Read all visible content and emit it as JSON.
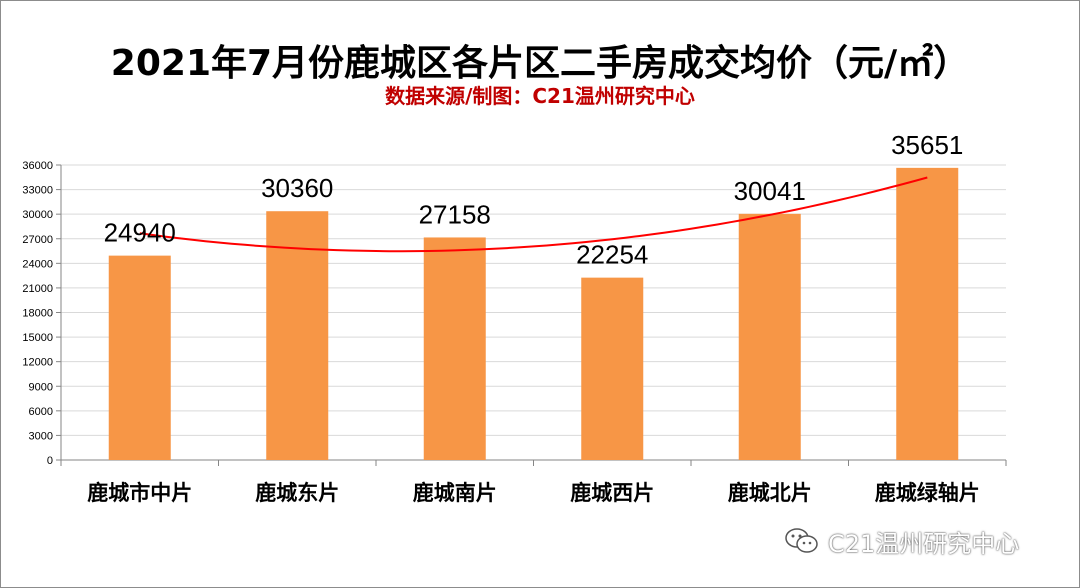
{
  "chart_data": {
    "type": "bar",
    "title": "2021年7月份鹿城区各片区二手房成交均价（元/㎡）",
    "subtitle": "数据来源/制图：C21温州研究中心",
    "categories": [
      "鹿城市中片",
      "鹿城东片",
      "鹿城南片",
      "鹿城西片",
      "鹿城北片",
      "鹿城绿轴片"
    ],
    "values": [
      24940,
      30360,
      27158,
      22254,
      30041,
      35651
    ],
    "data_labels": [
      "24940",
      "30360",
      "27158",
      "22254",
      "30041",
      "35651"
    ],
    "ylim": [
      0,
      36000
    ],
    "yticks": [
      0,
      3000,
      6000,
      9000,
      12000,
      15000,
      18000,
      21000,
      24000,
      27000,
      30000,
      33000,
      36000
    ],
    "grid": true,
    "trendline": "polynomial",
    "colors": {
      "bar": "#f79646",
      "trendline": "#ff0000",
      "subtitle": "#c00000",
      "grid": "#d9d9d9"
    }
  },
  "watermark": {
    "icon": "wechat-icon",
    "text": "C21温州研究中心"
  }
}
